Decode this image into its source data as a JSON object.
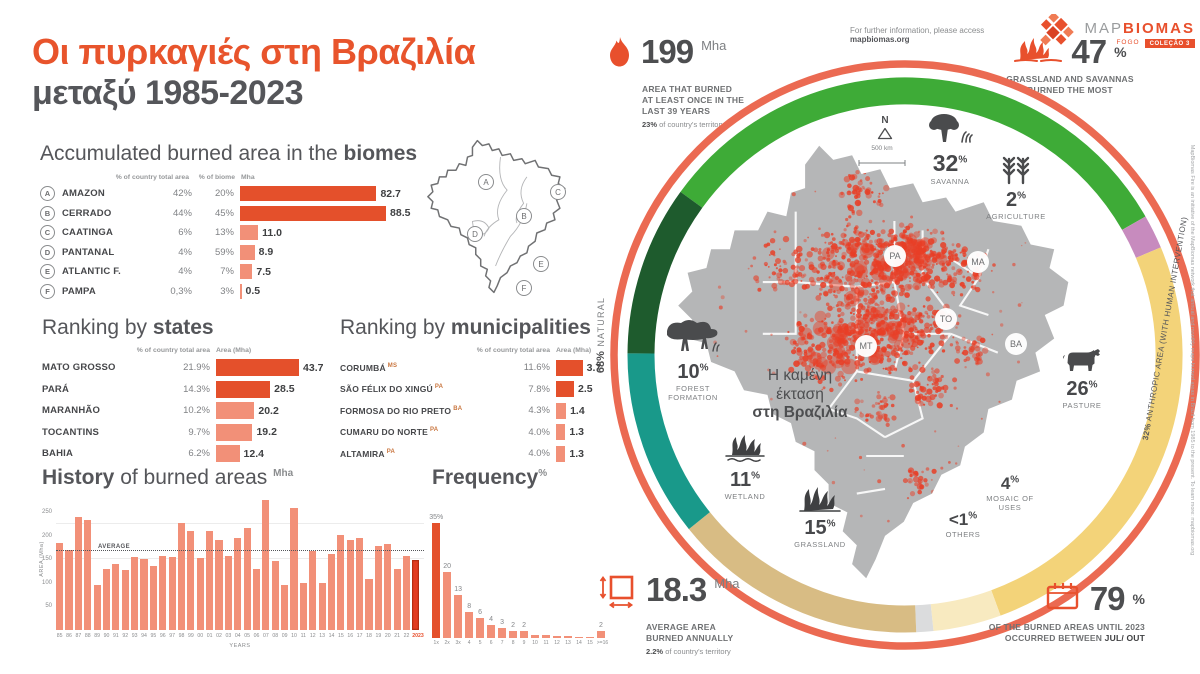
{
  "title": {
    "line1": "Οι πυρκαγιές στη Βραζιλία",
    "line2": "μεταξύ 1985-2023"
  },
  "header": {
    "info_prefix": "For further information, please access ",
    "info_link": "mapbiomas.org",
    "logo_map": "MAP",
    "logo_biomas": "BIOMAS",
    "logo_product": "FOGO",
    "logo_badge": "COLEÇÃO 3"
  },
  "stats": {
    "burned_total": {
      "value": "199",
      "unit": "Mha",
      "desc": "AREA THAT BURNED\nAT LEAST ONCE IN THE\nLAST 39 YEARS",
      "sub_bold": "23%",
      "sub_rest": " of country's territory"
    },
    "grassland_savannas": {
      "value": "47",
      "unit": "%",
      "desc": "GRASSLAND AND SAVANNAS\nBURNED THE MOST"
    },
    "annual_average": {
      "value": "18.3",
      "unit": "Mha",
      "desc": "AVERAGE AREA\nBURNED ANNUALLY",
      "sub_bold": "2.2%",
      "sub_rest": " of country's territory"
    },
    "season": {
      "value": "79",
      "unit": "%",
      "desc_line1": "OF THE BURNED AREAS UNTIL 2023",
      "desc_line2_pre": "OCCURRED BETWEEN ",
      "desc_bold": "JUL/ OUT"
    }
  },
  "sections": {
    "biomes": {
      "heading_regular": "Accumulated burned area in the ",
      "heading_bold": "biomes",
      "col_pct_country": "% of country total area",
      "col_pct_biome": "% of biome",
      "col_area": "Mha"
    },
    "states": {
      "heading_regular": "Ranking by ",
      "heading_bold": "states",
      "col_pct": "% of country total area",
      "col_area": "Area (Mha)"
    },
    "municipalities": {
      "heading_regular": "Ranking by ",
      "heading_bold": "municipalities",
      "col_pct": "% of country total area",
      "col_area": "Area (Mha)"
    },
    "history": {
      "heading_bold": "History",
      "heading_regular": " of burned areas",
      "unit": "Mha",
      "ylabel": "AREA (Mha)",
      "xlabel": "YEARS",
      "average_label": "AVERAGE"
    },
    "frequency": {
      "heading_bold": "Frequency",
      "unit": "%"
    }
  },
  "map_panel": {
    "compass_n": "N",
    "scale_label": "500 km",
    "caption_line1": "Η καμένη",
    "caption_line2": "έκταση",
    "caption_line3": "στη Βραζιλία",
    "natural_pct": "68%",
    "natural_label": "NATURAL",
    "anthropic_bold": "32%",
    "anthropic_label": " ANTHROPIC AREA (WITH HUMAN INTERVENTION)",
    "state_labels": [
      "PA",
      "MA",
      "TO",
      "MT",
      "BA"
    ],
    "credit": "MapBiomas Fire is an initiative of the MapBiomas network that annual and monthly maps burned areas in Brazil from 1985 to the present. To learn more: mapbiomas.org"
  },
  "chart_data": [
    {
      "id": "biomes",
      "type": "bar",
      "title": "Accumulated burned area in the biomes",
      "unit": "Mha",
      "rows": [
        {
          "letter": "A",
          "name": "AMAZON",
          "pct_country": "42%",
          "pct_biome": "20%",
          "value": 82.7,
          "label": "82.7",
          "dark": true
        },
        {
          "letter": "B",
          "name": "CERRADO",
          "pct_country": "44%",
          "pct_biome": "45%",
          "value": 88.5,
          "label": "88.5",
          "dark": true
        },
        {
          "letter": "C",
          "name": "CAATINGA",
          "pct_country": "6%",
          "pct_biome": "13%",
          "value": 11.0,
          "label": "11.0",
          "dark": false
        },
        {
          "letter": "D",
          "name": "PANTANAL",
          "pct_country": "4%",
          "pct_biome": "59%",
          "value": 8.9,
          "label": "8.9",
          "dark": false
        },
        {
          "letter": "E",
          "name": "ATLANTIC F.",
          "pct_country": "4%",
          "pct_biome": "7%",
          "value": 7.5,
          "label": "7.5",
          "dark": false
        },
        {
          "letter": "F",
          "name": "PAMPA",
          "pct_country": "0,3%",
          "pct_biome": "3%",
          "value": 0.5,
          "label": "0.5",
          "dark": false
        }
      ]
    },
    {
      "id": "states",
      "type": "bar",
      "title": "Ranking by states",
      "unit": "Mha",
      "rows": [
        {
          "name": "MATO GROSSO",
          "pct": "21.9%",
          "value": 43.7,
          "label": "43.7",
          "dark": true
        },
        {
          "name": "PARÁ",
          "pct": "14.3%",
          "value": 28.5,
          "label": "28.5",
          "dark": true
        },
        {
          "name": "MARANHÃO",
          "pct": "10.2%",
          "value": 20.2,
          "label": "20.2",
          "dark": false
        },
        {
          "name": "TOCANTINS",
          "pct": "9.7%",
          "value": 19.2,
          "label": "19.2",
          "dark": false
        },
        {
          "name": "BAHIA",
          "pct": "6.2%",
          "value": 12.4,
          "label": "12.4",
          "dark": false
        }
      ]
    },
    {
      "id": "municipalities",
      "type": "bar",
      "title": "Ranking by municipalities",
      "unit": "Mha",
      "rows": [
        {
          "name": "CORUMBÁ",
          "state": "MS",
          "pct": "11.6%",
          "value": 3.7,
          "label": "3.7",
          "dark": true
        },
        {
          "name": "SÃO FÉLIX DO XINGÚ",
          "state": "PA",
          "pct": "7.8%",
          "value": 2.5,
          "label": "2.5",
          "dark": true
        },
        {
          "name": "FORMOSA DO RIO PRETO",
          "state": "BA",
          "pct": "4.3%",
          "value": 1.4,
          "label": "1.4",
          "dark": false
        },
        {
          "name": "CUMARU DO NORTE",
          "state": "PA",
          "pct": "4.0%",
          "value": 1.3,
          "label": "1.3",
          "dark": false
        },
        {
          "name": "ALTAMIRA",
          "state": "PA",
          "pct": "4.0%",
          "value": 1.3,
          "label": "1.3",
          "dark": false
        }
      ]
    },
    {
      "id": "history",
      "type": "bar",
      "title": "History of burned areas",
      "ylabel": "AREA (Mha)",
      "xlabel": "YEARS",
      "ylim": [
        0,
        275
      ],
      "yticks": [
        50,
        100,
        150,
        200,
        250
      ],
      "average": 168,
      "years": [
        "85",
        "86",
        "87",
        "88",
        "89",
        "90",
        "91",
        "92",
        "93",
        "94",
        "95",
        "96",
        "97",
        "98",
        "99",
        "00",
        "01",
        "02",
        "03",
        "04",
        "05",
        "06",
        "07",
        "08",
        "09",
        "10",
        "11",
        "12",
        "13",
        "14",
        "15",
        "16",
        "17",
        "18",
        "19",
        "20",
        "21",
        "22",
        "2023"
      ],
      "values": [
        185,
        170,
        240,
        233,
        95,
        130,
        140,
        127,
        155,
        150,
        136,
        157,
        154,
        227,
        210,
        153,
        210,
        190,
        157,
        196,
        217,
        130,
        275,
        146,
        95,
        258,
        100,
        168,
        100,
        160,
        201,
        190,
        196,
        108,
        178,
        183,
        130,
        157,
        148
      ]
    },
    {
      "id": "frequency",
      "type": "bar",
      "title": "Frequency %",
      "labels": [
        "1x",
        "2x",
        "3x",
        "4",
        "5",
        "6",
        "7",
        "8",
        "9",
        "10",
        "11",
        "12",
        "13",
        "14",
        "15",
        ">=16"
      ],
      "values": [
        35,
        20,
        13,
        8,
        6,
        4,
        3,
        2,
        2,
        1,
        0.8,
        0.6,
        0.5,
        0.4,
        0.3,
        2
      ],
      "value_labels": [
        "35%",
        "20",
        "13",
        "8",
        "6",
        "4",
        "3",
        "2",
        "2",
        "",
        "",
        "",
        "",
        "",
        "",
        "2"
      ]
    },
    {
      "id": "burn_ring",
      "type": "pie",
      "title": "Burned area by land cover class",
      "segments": [
        {
          "name": "SAVANNA",
          "display": "32",
          "unit": "%",
          "pct": 32,
          "color": "#3EAB37",
          "group": "natural"
        },
        {
          "name": "AGRICULTURE",
          "display": "2",
          "unit": "%",
          "pct": 2,
          "color": "#C78BBE",
          "group": "anthropic"
        },
        {
          "name": "PASTURE",
          "display": "26",
          "unit": "%",
          "pct": 26,
          "color": "#F3D379",
          "group": "anthropic"
        },
        {
          "name": "MOSAIC OF USES",
          "display": "4",
          "unit": "%",
          "pct": 4,
          "color": "#F8EAC0",
          "group": "anthropic"
        },
        {
          "name": "OTHERS",
          "display": "<1",
          "unit": "%",
          "pct": 1,
          "color": "#DBDCDD",
          "group": "natural"
        },
        {
          "name": "GRASSLAND",
          "display": "15",
          "unit": "%",
          "pct": 15,
          "color": "#D8BC84",
          "group": "natural"
        },
        {
          "name": "WETLAND",
          "display": "11",
          "unit": "%",
          "pct": 11,
          "color": "#19998A",
          "group": "natural"
        },
        {
          "name": "FOREST FORMATION",
          "display": "10",
          "unit": "%",
          "pct": 10,
          "color": "#1E5B2D",
          "group": "natural"
        }
      ],
      "groups": [
        {
          "name": "NATURAL",
          "pct": 68
        },
        {
          "name": "ANTHROPIC AREA (WITH HUMAN INTERVENTION)",
          "pct": 32
        }
      ]
    }
  ],
  "colors": {
    "primary": "#E8502D",
    "dark_bar": "#E4502B",
    "light_bar": "#F29078",
    "outer_ring": "#EB6A52",
    "map_gray": "#B5B6B7",
    "burn_red": "#E83E26"
  }
}
